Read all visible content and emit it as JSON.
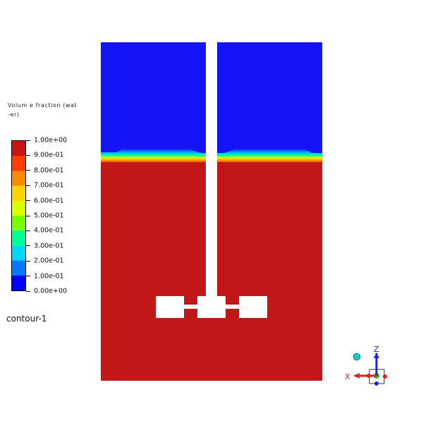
{
  "legend": {
    "title": "Volum e  fraction  (wat\n-er)",
    "ticks": [
      "1.00e+00",
      "9.00e-01",
      "8.00e-01",
      "7.00e-01",
      "6.00e-01",
      "5.00e-01",
      "4.00e-01",
      "3.00e-01",
      "2.00e-01",
      "1.00e-01",
      "0.00e+00"
    ],
    "colormap": [
      "#0000ff",
      "#0078ff",
      "#00d7ff",
      "#00ff96",
      "#78ff00",
      "#dcff00",
      "#ffd200",
      "#ff8c00",
      "#ff3c00",
      "#c81414"
    ],
    "range": [
      0,
      1
    ]
  },
  "contour": {
    "name": "contour-1"
  },
  "field": {
    "upper_phase_color": "#1414f5",
    "lower_phase_color": "#c21818",
    "solid_color": "#ffffff"
  },
  "axes": {
    "z_label": "Z",
    "x_label": "X",
    "x_color": "#e02020",
    "z_color": "#2020e0",
    "y_color": "#20c020",
    "sphere_color": "#20c0c0"
  }
}
